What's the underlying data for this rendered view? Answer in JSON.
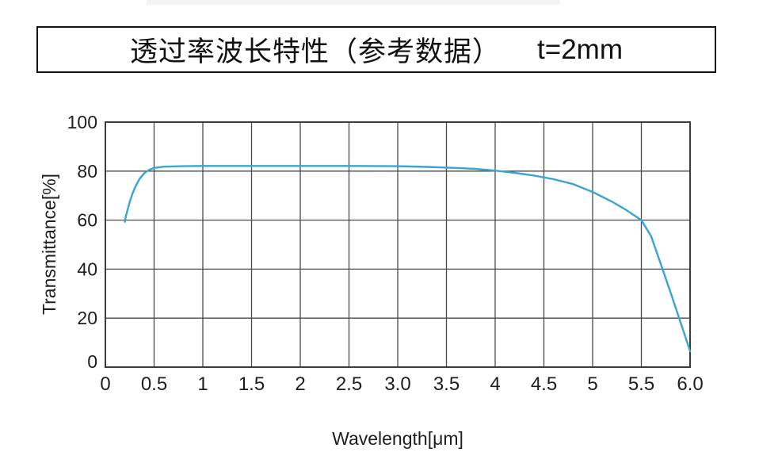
{
  "header": {
    "title": "透过率波长特性（参考数据）",
    "thickness_label": "t=2mm"
  },
  "chart_data": {
    "type": "line",
    "title": "透过率波长特性（参考数据） t=2mm",
    "xlabel": "Wavelength[μm]",
    "ylabel": "Transmittance[%]",
    "xlim": [
      0,
      6
    ],
    "ylim": [
      0,
      100
    ],
    "grid": true,
    "legend": "none",
    "grid_color": "#4a4a4a",
    "border_color": "#3c3c3c",
    "x_ticks": [
      {
        "value": 0,
        "label": "0"
      },
      {
        "value": 0.5,
        "label": "0.5"
      },
      {
        "value": 1,
        "label": "1"
      },
      {
        "value": 1.5,
        "label": "1.5"
      },
      {
        "value": 2,
        "label": "2"
      },
      {
        "value": 2.5,
        "label": "2.5"
      },
      {
        "value": 3,
        "label": "3.0"
      },
      {
        "value": 3.5,
        "label": "3.5"
      },
      {
        "value": 4,
        "label": "4"
      },
      {
        "value": 4.5,
        "label": "4.5"
      },
      {
        "value": 5,
        "label": "5"
      },
      {
        "value": 5.5,
        "label": "5.5"
      },
      {
        "value": 6,
        "label": "6.0"
      }
    ],
    "y_ticks": [
      {
        "value": 0,
        "label": "0"
      },
      {
        "value": 20,
        "label": "20"
      },
      {
        "value": 40,
        "label": "40"
      },
      {
        "value": 60,
        "label": "60"
      },
      {
        "value": 80,
        "label": "80"
      },
      {
        "value": 100,
        "label": "100"
      }
    ],
    "series": [
      {
        "name": "transmittance",
        "color": "#3aa4d5",
        "points": [
          [
            0.2,
            59.3
          ],
          [
            0.21,
            61.5
          ],
          [
            0.23,
            64.5
          ],
          [
            0.25,
            67.5
          ],
          [
            0.28,
            71.0
          ],
          [
            0.31,
            73.8
          ],
          [
            0.35,
            76.8
          ],
          [
            0.4,
            79.2
          ],
          [
            0.45,
            80.5
          ],
          [
            0.5,
            81.3
          ],
          [
            0.6,
            81.8
          ],
          [
            0.8,
            82.0
          ],
          [
            1.0,
            82.1
          ],
          [
            1.5,
            82.1
          ],
          [
            2.0,
            82.1
          ],
          [
            2.5,
            82.1
          ],
          [
            3.0,
            82.0
          ],
          [
            3.3,
            81.7
          ],
          [
            3.6,
            81.3
          ],
          [
            3.8,
            80.9
          ],
          [
            4.0,
            80.2
          ],
          [
            4.2,
            79.3
          ],
          [
            4.4,
            78.2
          ],
          [
            4.6,
            76.7
          ],
          [
            4.8,
            74.7
          ],
          [
            5.0,
            71.5
          ],
          [
            5.2,
            67.5
          ],
          [
            5.35,
            64.0
          ],
          [
            5.5,
            60.0
          ],
          [
            5.6,
            53.5
          ],
          [
            5.7,
            42.0
          ],
          [
            5.8,
            30.5
          ],
          [
            5.9,
            18.5
          ],
          [
            5.95,
            12.5
          ],
          [
            6.0,
            6.5
          ]
        ]
      }
    ]
  }
}
